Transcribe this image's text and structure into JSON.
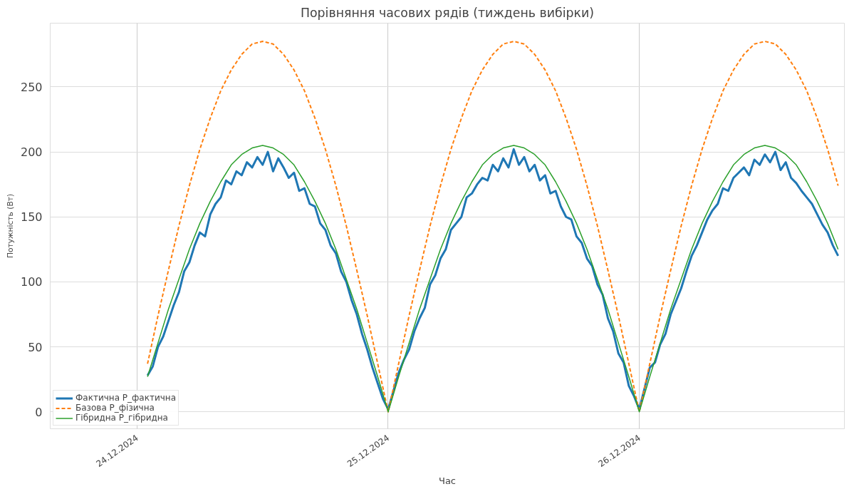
{
  "chart_data": {
    "type": "line",
    "title": "Порівняння часових рядів (тиждень вибірки)",
    "xlabel": "Час",
    "ylabel": "Потужність (Вт)",
    "xlim": [
      "2024-12-23T15:42",
      "2024-12-26T19:36"
    ],
    "xticks": [
      {
        "value": "2024-12-24",
        "label": "24.12.2024"
      },
      {
        "value": "2024-12-25",
        "label": "25.12.2024"
      },
      {
        "value": "2024-12-26",
        "label": "26.12.2024"
      }
    ],
    "ylim": [
      -13,
      299
    ],
    "yticks": [
      0,
      50,
      100,
      150,
      200,
      250
    ],
    "grid": true,
    "legend": "bottom left",
    "series": [
      {
        "name": "Фактична P_фактична",
        "color": "#1f77b4",
        "line_style": "solid",
        "x": [
          "2024-12-24T01:00",
          "2024-12-24T01:30",
          "2024-12-24T02:00",
          "2024-12-24T02:30",
          "2024-12-24T03:00",
          "2024-12-24T03:30",
          "2024-12-24T04:00",
          "2024-12-24T04:30",
          "2024-12-24T05:00",
          "2024-12-24T05:30",
          "2024-12-24T06:00",
          "2024-12-24T06:30",
          "2024-12-24T07:00",
          "2024-12-24T07:30",
          "2024-12-24T08:00",
          "2024-12-24T08:30",
          "2024-12-24T09:00",
          "2024-12-24T09:30",
          "2024-12-24T10:00",
          "2024-12-24T10:30",
          "2024-12-24T11:00",
          "2024-12-24T11:30",
          "2024-12-24T12:00",
          "2024-12-24T12:30",
          "2024-12-24T13:00",
          "2024-12-24T13:30",
          "2024-12-24T14:00",
          "2024-12-24T14:30",
          "2024-12-24T15:00",
          "2024-12-24T15:30",
          "2024-12-24T16:00",
          "2024-12-24T16:30",
          "2024-12-24T17:00",
          "2024-12-24T17:30",
          "2024-12-24T18:00",
          "2024-12-24T18:30",
          "2024-12-24T19:00",
          "2024-12-24T19:30",
          "2024-12-24T20:00",
          "2024-12-24T20:30",
          "2024-12-24T21:00",
          "2024-12-24T21:30",
          "2024-12-24T22:00",
          "2024-12-24T22:30",
          "2024-12-24T23:00",
          "2024-12-24T23:30",
          "2024-12-25T00:00",
          "2024-12-25T01:00",
          "2024-12-25T01:30",
          "2024-12-25T02:00",
          "2024-12-25T02:30",
          "2024-12-25T03:00",
          "2024-12-25T03:30",
          "2024-12-25T04:00",
          "2024-12-25T04:30",
          "2024-12-25T05:00",
          "2024-12-25T05:30",
          "2024-12-25T06:00",
          "2024-12-25T06:30",
          "2024-12-25T07:00",
          "2024-12-25T07:30",
          "2024-12-25T08:00",
          "2024-12-25T08:30",
          "2024-12-25T09:00",
          "2024-12-25T09:30",
          "2024-12-25T10:00",
          "2024-12-25T10:30",
          "2024-12-25T11:00",
          "2024-12-25T11:30",
          "2024-12-25T12:00",
          "2024-12-25T12:30",
          "2024-12-25T13:00",
          "2024-12-25T13:30",
          "2024-12-25T14:00",
          "2024-12-25T14:30",
          "2024-12-25T15:00",
          "2024-12-25T15:30",
          "2024-12-25T16:00",
          "2024-12-25T16:30",
          "2024-12-25T17:00",
          "2024-12-25T17:30",
          "2024-12-25T18:00",
          "2024-12-25T18:30",
          "2024-12-25T19:00",
          "2024-12-25T19:30",
          "2024-12-25T20:00",
          "2024-12-25T20:30",
          "2024-12-25T21:00",
          "2024-12-25T21:30",
          "2024-12-25T22:00",
          "2024-12-25T22:30",
          "2024-12-25T23:00",
          "2024-12-25T23:30",
          "2024-12-26T00:00",
          "2024-12-26T01:00",
          "2024-12-26T01:30",
          "2024-12-26T02:00",
          "2024-12-26T02:30",
          "2024-12-26T03:00",
          "2024-12-26T03:30",
          "2024-12-26T04:00",
          "2024-12-26T04:30",
          "2024-12-26T05:00",
          "2024-12-26T05:30",
          "2024-12-26T06:00",
          "2024-12-26T06:30",
          "2024-12-26T07:00",
          "2024-12-26T07:30",
          "2024-12-26T08:00",
          "2024-12-26T08:30",
          "2024-12-26T09:00",
          "2024-12-26T09:30",
          "2024-12-26T10:00",
          "2024-12-26T10:30",
          "2024-12-26T11:00",
          "2024-12-26T11:30",
          "2024-12-26T12:00",
          "2024-12-26T12:30",
          "2024-12-26T13:00",
          "2024-12-26T13:30",
          "2024-12-26T14:00",
          "2024-12-26T14:30",
          "2024-12-26T15:00",
          "2024-12-26T15:30",
          "2024-12-26T16:00",
          "2024-12-26T16:30",
          "2024-12-26T17:00",
          "2024-12-26T17:30",
          "2024-12-26T18:00",
          "2024-12-26T18:30",
          "2024-12-26T19:00"
        ],
        "values": [
          28,
          35,
          50,
          58,
          70,
          82,
          92,
          108,
          115,
          128,
          138,
          135,
          152,
          160,
          165,
          178,
          175,
          185,
          182,
          192,
          188,
          196,
          190,
          200,
          185,
          195,
          188,
          180,
          184,
          170,
          172,
          160,
          158,
          145,
          140,
          128,
          122,
          108,
          100,
          86,
          75,
          60,
          48,
          34,
          22,
          10,
          2,
          30,
          40,
          48,
          62,
          72,
          80,
          98,
          105,
          118,
          125,
          140,
          145,
          150,
          165,
          168,
          175,
          180,
          178,
          190,
          185,
          195,
          188,
          202,
          190,
          196,
          185,
          190,
          178,
          182,
          168,
          170,
          158,
          150,
          148,
          135,
          130,
          118,
          112,
          98,
          90,
          72,
          62,
          45,
          38,
          20,
          12,
          2,
          34,
          38,
          52,
          60,
          75,
          85,
          95,
          108,
          120,
          128,
          138,
          148,
          155,
          160,
          172,
          170,
          180,
          184,
          188,
          182,
          194,
          190,
          198,
          192,
          200,
          186,
          192,
          180,
          176,
          170,
          165,
          160,
          152,
          144,
          138,
          128,
          120
        ]
      },
      {
        "name": "Базова P_фізична",
        "color": "#ff7f0e",
        "line_style": "dashed",
        "x": [
          "2024-12-24T01:00",
          "2024-12-24T02:00",
          "2024-12-24T03:00",
          "2024-12-24T04:00",
          "2024-12-24T05:00",
          "2024-12-24T06:00",
          "2024-12-24T07:00",
          "2024-12-24T08:00",
          "2024-12-24T09:00",
          "2024-12-24T10:00",
          "2024-12-24T11:00",
          "2024-12-24T12:00",
          "2024-12-24T13:00",
          "2024-12-24T14:00",
          "2024-12-24T15:00",
          "2024-12-24T16:00",
          "2024-12-24T17:00",
          "2024-12-24T18:00",
          "2024-12-24T19:00",
          "2024-12-24T20:00",
          "2024-12-24T21:00",
          "2024-12-24T22:00",
          "2024-12-24T23:00",
          "2024-12-25T00:00",
          "2024-12-25T01:00",
          "2024-12-25T02:00",
          "2024-12-25T03:00",
          "2024-12-25T04:00",
          "2024-12-25T05:00",
          "2024-12-25T06:00",
          "2024-12-25T07:00",
          "2024-12-25T08:00",
          "2024-12-25T09:00",
          "2024-12-25T10:00",
          "2024-12-25T11:00",
          "2024-12-25T12:00",
          "2024-12-25T13:00",
          "2024-12-25T14:00",
          "2024-12-25T15:00",
          "2024-12-25T16:00",
          "2024-12-25T17:00",
          "2024-12-25T18:00",
          "2024-12-25T19:00",
          "2024-12-25T20:00",
          "2024-12-25T21:00",
          "2024-12-25T22:00",
          "2024-12-25T23:00",
          "2024-12-26T00:00",
          "2024-12-26T01:00",
          "2024-12-26T02:00",
          "2024-12-26T03:00",
          "2024-12-26T04:00",
          "2024-12-26T05:00",
          "2024-12-26T06:00",
          "2024-12-26T07:00",
          "2024-12-26T08:00",
          "2024-12-26T09:00",
          "2024-12-26T10:00",
          "2024-12-26T11:00",
          "2024-12-26T12:00",
          "2024-12-26T13:00",
          "2024-12-26T14:00",
          "2024-12-26T15:00",
          "2024-12-26T16:00",
          "2024-12-26T17:00",
          "2024-12-26T18:00",
          "2024-12-26T19:00"
        ],
        "values": [
          37,
          74,
          109,
          143,
          174,
          202,
          226,
          247,
          263,
          275,
          283,
          285,
          283,
          275,
          263,
          247,
          226,
          202,
          174,
          143,
          109,
          74,
          37,
          0,
          37,
          74,
          109,
          143,
          174,
          202,
          226,
          247,
          263,
          275,
          283,
          285,
          283,
          275,
          263,
          247,
          226,
          202,
          174,
          143,
          109,
          74,
          37,
          0,
          37,
          74,
          109,
          143,
          174,
          202,
          226,
          247,
          263,
          275,
          283,
          285,
          283,
          275,
          263,
          247,
          226,
          202,
          174
        ]
      },
      {
        "name": "Гібридна P_гібридна",
        "color": "#2ca02c",
        "line_style": "solid",
        "x": [
          "2024-12-24T01:00",
          "2024-12-24T02:00",
          "2024-12-24T03:00",
          "2024-12-24T04:00",
          "2024-12-24T05:00",
          "2024-12-24T06:00",
          "2024-12-24T07:00",
          "2024-12-24T08:00",
          "2024-12-24T09:00",
          "2024-12-24T10:00",
          "2024-12-24T11:00",
          "2024-12-24T12:00",
          "2024-12-24T13:00",
          "2024-12-24T14:00",
          "2024-12-24T15:00",
          "2024-12-24T16:00",
          "2024-12-24T17:00",
          "2024-12-24T18:00",
          "2024-12-24T19:00",
          "2024-12-24T20:00",
          "2024-12-24T21:00",
          "2024-12-24T22:00",
          "2024-12-24T23:00",
          "2024-12-25T00:00",
          "2024-12-25T01:00",
          "2024-12-25T02:00",
          "2024-12-25T03:00",
          "2024-12-25T04:00",
          "2024-12-25T05:00",
          "2024-12-25T06:00",
          "2024-12-25T07:00",
          "2024-12-25T08:00",
          "2024-12-25T09:00",
          "2024-12-25T10:00",
          "2024-12-25T11:00",
          "2024-12-25T12:00",
          "2024-12-25T13:00",
          "2024-12-25T14:00",
          "2024-12-25T15:00",
          "2024-12-25T16:00",
          "2024-12-25T17:00",
          "2024-12-25T18:00",
          "2024-12-25T19:00",
          "2024-12-25T20:00",
          "2024-12-25T21:00",
          "2024-12-25T22:00",
          "2024-12-25T23:00",
          "2024-12-26T00:00",
          "2024-12-26T01:00",
          "2024-12-26T02:00",
          "2024-12-26T03:00",
          "2024-12-26T04:00",
          "2024-12-26T05:00",
          "2024-12-26T06:00",
          "2024-12-26T07:00",
          "2024-12-26T08:00",
          "2024-12-26T09:00",
          "2024-12-26T10:00",
          "2024-12-26T11:00",
          "2024-12-26T12:00",
          "2024-12-26T13:00",
          "2024-12-26T14:00",
          "2024-12-26T15:00",
          "2024-12-26T16:00",
          "2024-12-26T17:00",
          "2024-12-26T18:00",
          "2024-12-26T19:00"
        ],
        "values": [
          27,
          53,
          79,
          102,
          125,
          145,
          162,
          177,
          190,
          198,
          203,
          205,
          203,
          198,
          190,
          177,
          162,
          145,
          125,
          102,
          79,
          53,
          27,
          0,
          27,
          53,
          79,
          102,
          125,
          145,
          162,
          177,
          190,
          198,
          203,
          205,
          203,
          198,
          190,
          177,
          162,
          145,
          125,
          102,
          79,
          53,
          27,
          0,
          27,
          53,
          79,
          102,
          125,
          145,
          162,
          177,
          190,
          198,
          203,
          205,
          203,
          198,
          190,
          177,
          162,
          145,
          125
        ]
      }
    ]
  }
}
